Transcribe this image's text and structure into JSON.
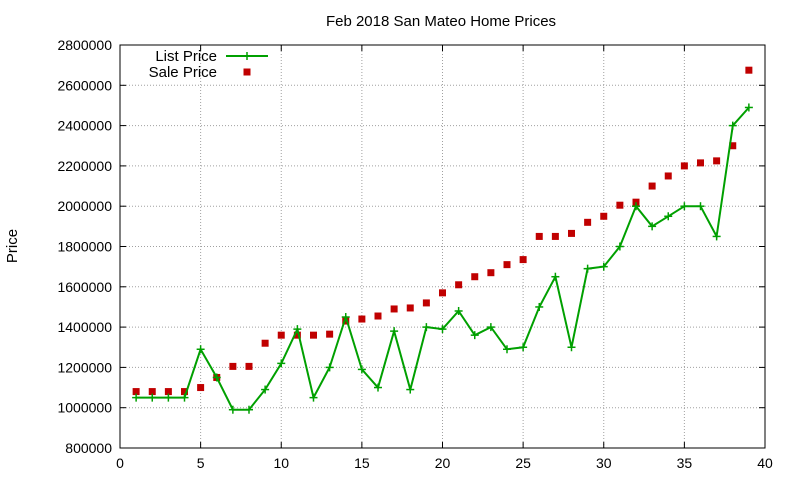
{
  "chart_data": {
    "type": "line",
    "title": "Feb 2018 San Mateo Home Prices",
    "xlabel": "",
    "ylabel": "Price",
    "xlim": [
      0,
      40
    ],
    "ylim": [
      800000,
      2800000
    ],
    "xticks": [
      0,
      5,
      10,
      15,
      20,
      25,
      30,
      35,
      40
    ],
    "yticks": [
      800000,
      1000000,
      1200000,
      1400000,
      1600000,
      1800000,
      2000000,
      2200000,
      2400000,
      2600000,
      2800000
    ],
    "grid": true,
    "legend_position": "top-left",
    "series": [
      {
        "name": "List Price",
        "style": "line-plus",
        "color": "#00a000",
        "x": [
          1,
          2,
          3,
          4,
          5,
          6,
          7,
          8,
          9,
          10,
          11,
          12,
          13,
          14,
          15,
          16,
          17,
          18,
          19,
          20,
          21,
          22,
          23,
          24,
          25,
          26,
          27,
          28,
          29,
          30,
          31,
          32,
          33,
          34,
          35,
          36,
          37,
          38,
          39
        ],
        "values": [
          1050000,
          1050000,
          1050000,
          1050000,
          1290000,
          1150000,
          990000,
          990000,
          1090000,
          1220000,
          1390000,
          1050000,
          1200000,
          1450000,
          1190000,
          1100000,
          1380000,
          1090000,
          1400000,
          1390000,
          1480000,
          1360000,
          1400000,
          1290000,
          1300000,
          1500000,
          1650000,
          1300000,
          1690000,
          1700000,
          1800000,
          2000000,
          1900000,
          1950000,
          2000000,
          2000000,
          1850000,
          2400000,
          2490000
        ]
      },
      {
        "name": "Sale Price",
        "style": "square-markers",
        "color": "#c00000",
        "x": [
          1,
          2,
          3,
          4,
          5,
          6,
          7,
          8,
          9,
          10,
          11,
          12,
          13,
          14,
          15,
          16,
          17,
          18,
          19,
          20,
          21,
          22,
          23,
          24,
          25,
          26,
          27,
          28,
          29,
          30,
          31,
          32,
          33,
          34,
          35,
          36,
          37,
          38,
          39
        ],
        "values": [
          1080000,
          1080000,
          1080000,
          1080000,
          1100000,
          1150000,
          1205000,
          1205000,
          1320000,
          1360000,
          1360000,
          1360000,
          1365000,
          1430000,
          1440000,
          1455000,
          1490000,
          1495000,
          1520000,
          1570000,
          1610000,
          1650000,
          1670000,
          1710000,
          1735000,
          1850000,
          1850000,
          1865000,
          1920000,
          1950000,
          2005000,
          2020000,
          2100000,
          2150000,
          2200000,
          2215000,
          2225000,
          2300000,
          2675000
        ]
      }
    ]
  }
}
